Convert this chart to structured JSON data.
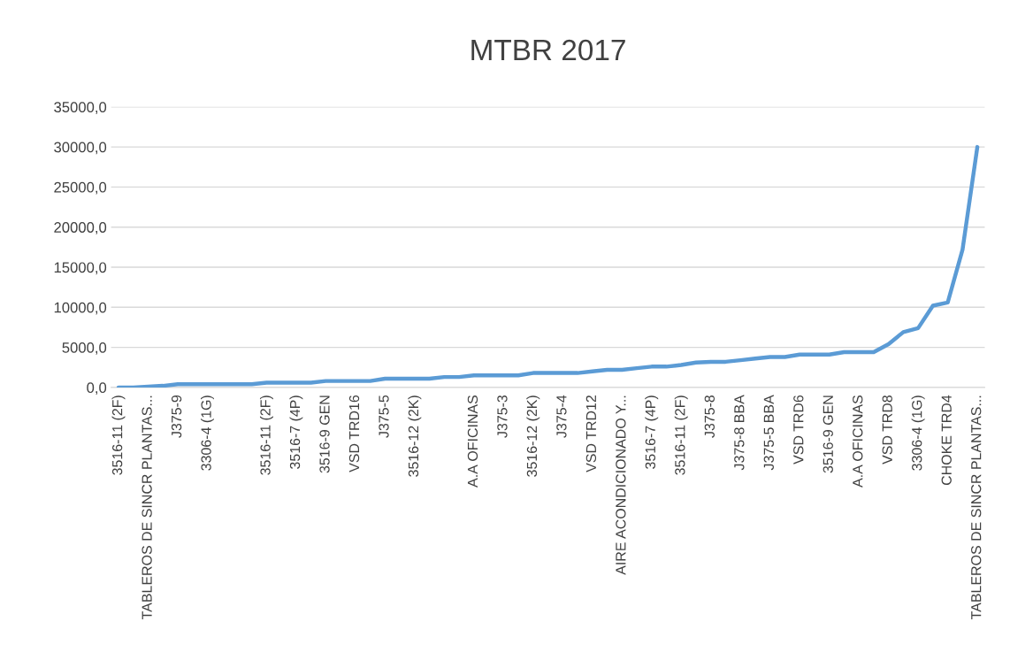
{
  "chart_data": {
    "type": "line",
    "title": "MTBR 2017",
    "categories": [
      "3516-11 (2F)",
      null,
      "TABLEROS DE SINCR PLANTAS...",
      null,
      "J375-9",
      null,
      "3306-4 (1G)",
      null,
      null,
      null,
      "3516-11 (2F)",
      null,
      "3516-7 (4P)",
      null,
      "3516-9 GEN",
      null,
      "VSD TRD16",
      null,
      "J375-5",
      null,
      "3516-12 (2K)",
      null,
      null,
      null,
      "A.A OFICINAS",
      null,
      "J375-3",
      null,
      "3516-12 (2K)",
      null,
      "J375-4",
      null,
      "VSD TRD12",
      null,
      "AIRE ACONDICIONADO Y...",
      null,
      "3516-7 (4P)",
      null,
      "3516-11 (2F)",
      null,
      "J375-8",
      null,
      "J375-8 BBA",
      null,
      "J375-5 BBA",
      null,
      "VSD TRD6",
      null,
      "3516-9 GEN",
      null,
      "A.A OFICINAS",
      null,
      "VSD TRD8",
      null,
      "3306-4 (1G)",
      null,
      "CHOKE TRD4",
      null,
      "TABLEROS DE SINCR PLANTAS..."
    ],
    "series": [
      {
        "color": "#5b9bd5",
        "values": [
          0,
          0,
          100,
          200,
          400,
          400,
          400,
          400,
          400,
          400,
          600,
          600,
          600,
          600,
          800,
          800,
          800,
          800,
          1100,
          1100,
          1100,
          1100,
          1300,
          1300,
          1500,
          1500,
          1500,
          1500,
          1800,
          1800,
          1800,
          1800,
          2000,
          2200,
          2200,
          2400,
          2600,
          2600,
          2800,
          3100,
          3200,
          3200,
          3400,
          3600,
          3800,
          3800,
          4100,
          4100,
          4100,
          4400,
          4400,
          4400,
          5400,
          6900,
          7400,
          10200,
          10600,
          17200,
          30000
        ]
      }
    ],
    "ylim": [
      0,
      35000
    ],
    "yticks": [
      {
        "value": 0,
        "label": "0,0"
      },
      {
        "value": 5000,
        "label": "5000,0"
      },
      {
        "value": 10000,
        "label": "10000,0"
      },
      {
        "value": 15000,
        "label": "15000,0"
      },
      {
        "value": 20000,
        "label": "20000,0"
      },
      {
        "value": 25000,
        "label": "25000,0"
      },
      {
        "value": 30000,
        "label": "30000,0"
      },
      {
        "value": 35000,
        "label": "35000,0"
      }
    ],
    "grid": "y",
    "marker": "none",
    "line_style": "solid"
  }
}
